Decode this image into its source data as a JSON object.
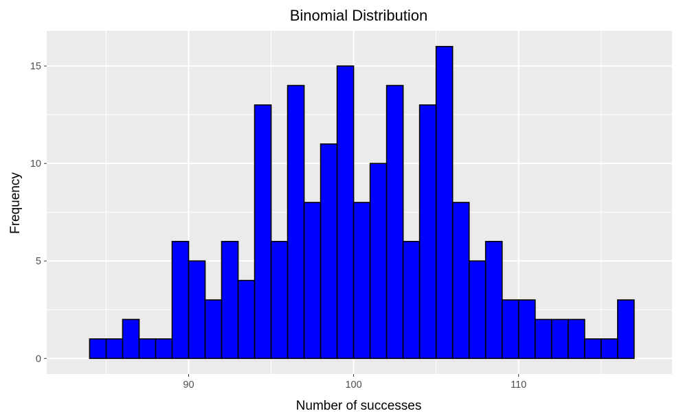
{
  "chart_data": {
    "type": "bar",
    "title": "Binomial Distribution",
    "xlabel": "Number of successes",
    "ylabel": "Frequency",
    "bin_width": 1,
    "bins_start": [
      84,
      85,
      86,
      87,
      88,
      89,
      90,
      91,
      92,
      93,
      94,
      95,
      96,
      97,
      98,
      99,
      100,
      101,
      102,
      103,
      104,
      105,
      106,
      107,
      108,
      109,
      110,
      111,
      112,
      113,
      114,
      115,
      116
    ],
    "values": [
      1,
      1,
      2,
      1,
      1,
      6,
      5,
      3,
      6,
      4,
      13,
      6,
      14,
      8,
      11,
      15,
      8,
      10,
      14,
      6,
      13,
      16,
      8,
      5,
      6,
      3,
      3,
      2,
      2,
      2,
      1,
      1,
      3
    ],
    "xlim": [
      81.4,
      119.3
    ],
    "ylim": [
      -0.8,
      16.8
    ],
    "x_ticks": [
      90,
      100,
      110
    ],
    "x_minor_ticks": [
      85,
      95,
      105,
      115
    ],
    "y_ticks": [
      0,
      5,
      10,
      15
    ],
    "y_minor_ticks": [
      2.5,
      7.5,
      12.5
    ],
    "grid": true,
    "colors": {
      "bar_fill": "#0000FF",
      "bar_outline": "#000000",
      "panel_background": "#EBEBEB",
      "grid": "#FFFFFF"
    }
  }
}
